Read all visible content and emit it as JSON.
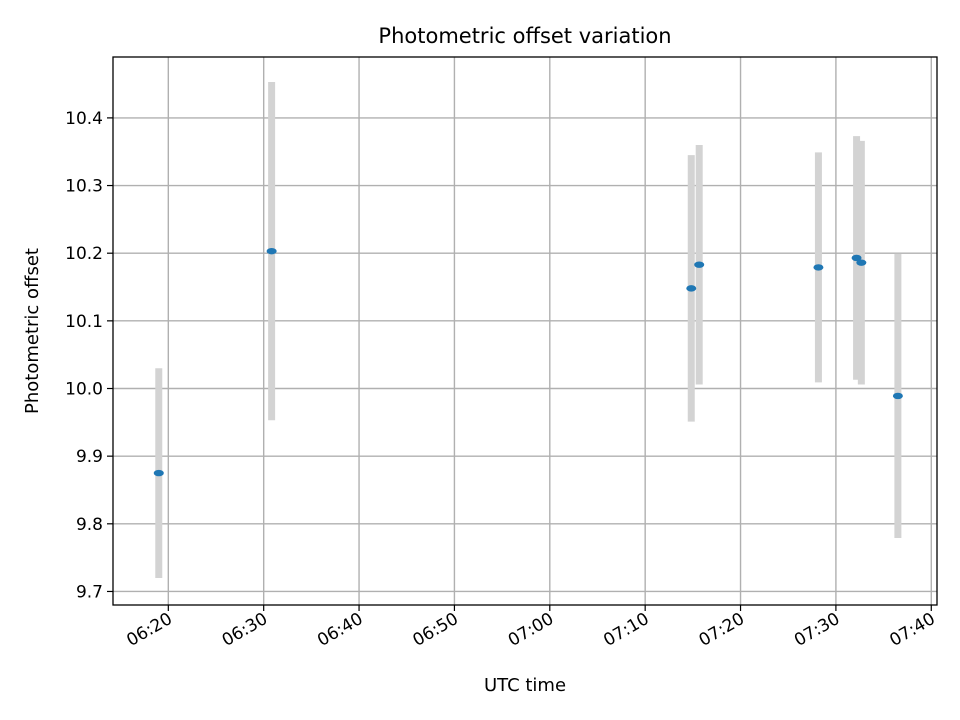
{
  "chart_data": {
    "type": "scatter",
    "title": "Photometric offset variation",
    "xlabel": "UTC time",
    "ylabel": "Photometric offset",
    "xlim": [
      "06:14:12",
      "07:40:36"
    ],
    "ylim": [
      9.68,
      10.49
    ],
    "grid": true,
    "colors": {
      "marker": "#1f77b4",
      "errorbar": "#d3d3d3",
      "grid": "#b0b0b0"
    },
    "x_ticks": [
      "06:20",
      "06:30",
      "06:40",
      "06:50",
      "07:00",
      "07:10",
      "07:20",
      "07:30",
      "07:40"
    ],
    "y_ticks": [
      "9.7",
      "9.8",
      "9.9",
      "10.0",
      "10.1",
      "10.2",
      "10.3",
      "10.4"
    ],
    "points": [
      {
        "x": "06:19:00",
        "y": 9.875,
        "err": 0.155
      },
      {
        "x": "06:30:50",
        "y": 10.203,
        "err": 0.25
      },
      {
        "x": "07:14:50",
        "y": 10.148,
        "err": 0.197
      },
      {
        "x": "07:15:40",
        "y": 10.183,
        "err": 0.177
      },
      {
        "x": "07:28:10",
        "y": 10.179,
        "err": 0.17
      },
      {
        "x": "07:32:10",
        "y": 10.193,
        "err": 0.18
      },
      {
        "x": "07:32:40",
        "y": 10.186,
        "err": 0.18
      },
      {
        "x": "07:36:30",
        "y": 9.989,
        "err": 0.21
      }
    ]
  }
}
